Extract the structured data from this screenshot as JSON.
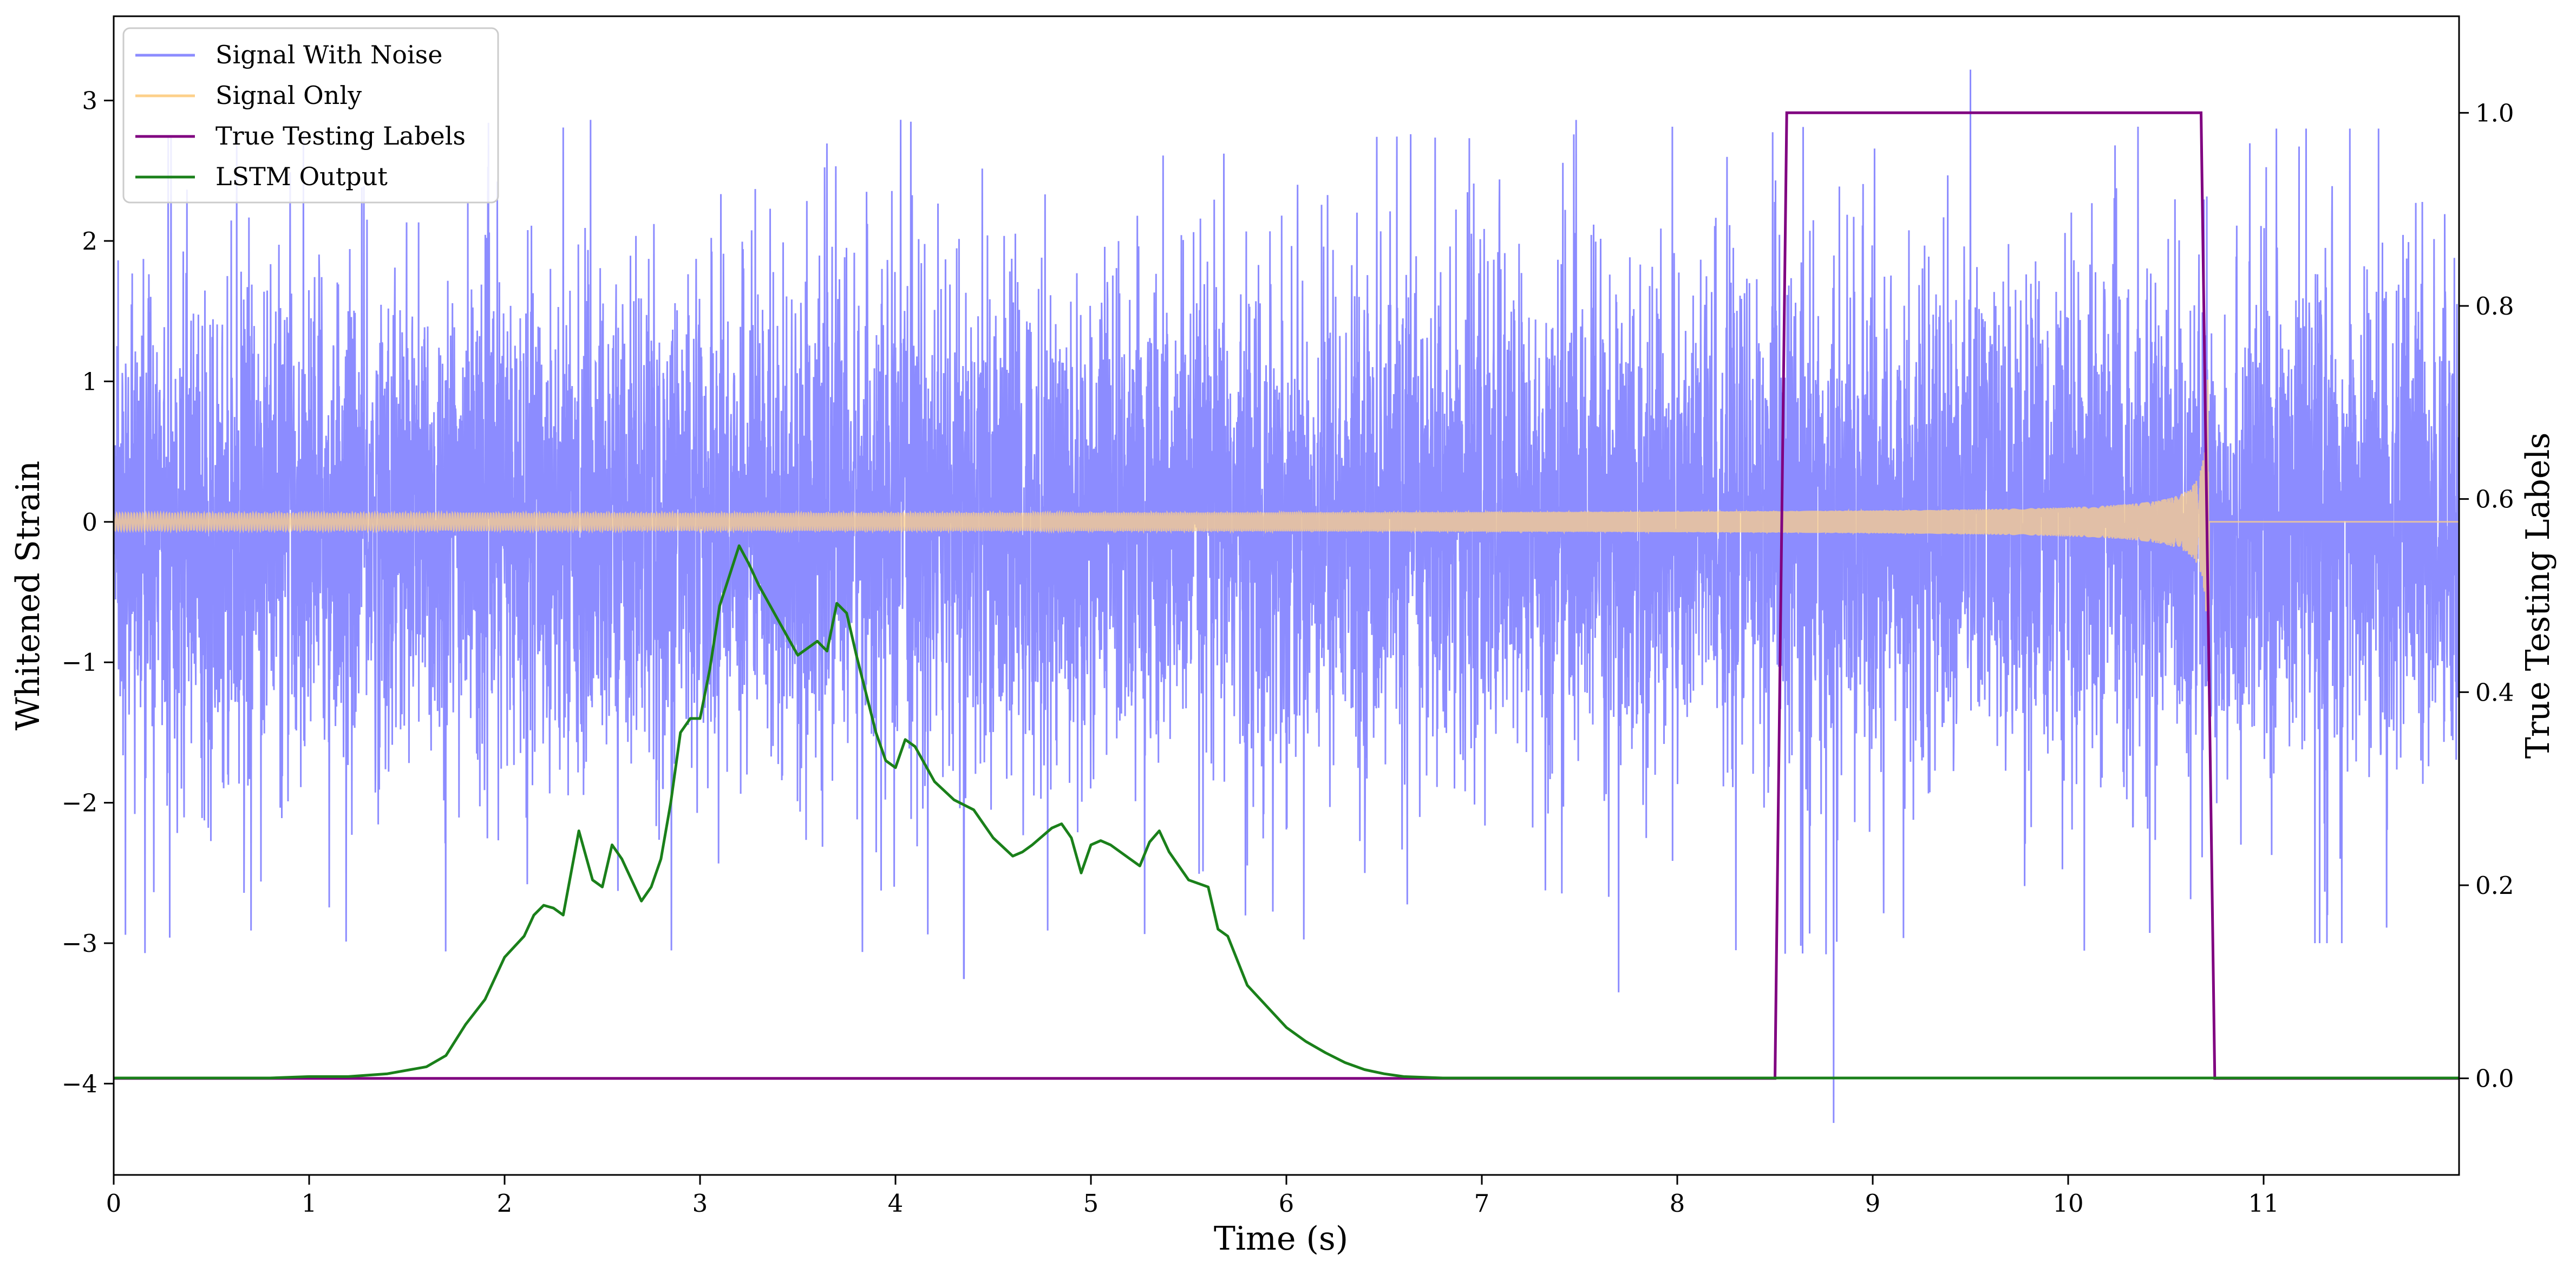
{
  "chart_data": {
    "type": "line",
    "title": "",
    "xlabel": "Time (s)",
    "ylabel": "Whitened Strain",
    "ylabel_right": "True Testing Labels",
    "xlim": [
      0,
      12
    ],
    "ylim": [
      -4.65,
      3.6
    ],
    "ylim_right": [
      -0.1,
      1.1
    ],
    "x_ticks": [
      0,
      1,
      2,
      3,
      4,
      5,
      6,
      7,
      8,
      9,
      10,
      11
    ],
    "y_ticks": [
      -4,
      -3,
      -2,
      -1,
      0,
      1,
      2,
      3
    ],
    "y_ticks_right": [
      0.0,
      0.2,
      0.4,
      0.6,
      0.8,
      1.0
    ],
    "x_tick_labels": [
      "0",
      "1",
      "2",
      "3",
      "4",
      "5",
      "6",
      "7",
      "8",
      "9",
      "10",
      "11"
    ],
    "y_tick_labels": [
      "−4",
      "−3",
      "−2",
      "−1",
      "0",
      "1",
      "2",
      "3"
    ],
    "y_tick_labels_right": [
      "0.0",
      "0.2",
      "0.4",
      "0.6",
      "0.8",
      "1.0"
    ],
    "grid": false,
    "legend_position": "top-left",
    "colors": {
      "noise": "#8080ff",
      "signal": "#fdd08a",
      "labels": "#800080",
      "lstm": "#1a801a"
    },
    "series": [
      {
        "name": "Signal With Noise",
        "axis": "left",
        "kind": "noise",
        "envelope": {
          "typical_amplitude": 1.8,
          "peak_max": 3.22,
          "peak_min": -4.28
        },
        "noted_extremes": [
          {
            "x": 9.5,
            "y": 3.22
          },
          {
            "x": 8.8,
            "y": -4.28
          },
          {
            "x": 0.16,
            "y": -3.07
          },
          {
            "x": 4.35,
            "y": -3.25
          },
          {
            "x": 7.7,
            "y": -3.35
          }
        ]
      },
      {
        "name": "Signal Only",
        "axis": "left",
        "kind": "chirp",
        "amplitude_start": 0.05,
        "amplitude_end": 0.78,
        "end_time": 10.72
      },
      {
        "name": "True Testing Labels",
        "axis": "right",
        "kind": "step",
        "x": [
          0,
          8.5,
          8.56,
          10.68,
          10.75,
          12
        ],
        "values": [
          0,
          0,
          1,
          1,
          0,
          0
        ]
      },
      {
        "name": "LSTM Output",
        "axis": "left",
        "kind": "line",
        "x": [
          0,
          0.8,
          1.0,
          1.2,
          1.4,
          1.6,
          1.7,
          1.8,
          1.9,
          2.0,
          2.1,
          2.15,
          2.2,
          2.25,
          2.3,
          2.38,
          2.45,
          2.5,
          2.55,
          2.6,
          2.7,
          2.75,
          2.8,
          2.85,
          2.9,
          2.95,
          3.0,
          3.05,
          3.1,
          3.2,
          3.25,
          3.3,
          3.4,
          3.5,
          3.6,
          3.65,
          3.7,
          3.75,
          3.8,
          3.9,
          3.95,
          4.0,
          4.05,
          4.1,
          4.2,
          4.3,
          4.4,
          4.5,
          4.6,
          4.65,
          4.7,
          4.8,
          4.85,
          4.9,
          4.95,
          5.0,
          5.05,
          5.1,
          5.2,
          5.25,
          5.3,
          5.35,
          5.4,
          5.5,
          5.6,
          5.65,
          5.7,
          5.8,
          5.9,
          6.0,
          6.1,
          6.2,
          6.3,
          6.4,
          6.5,
          6.6,
          6.8,
          7.0,
          7.5,
          8.0,
          12.0
        ],
        "values": [
          -3.96,
          -3.96,
          -3.95,
          -3.95,
          -3.93,
          -3.88,
          -3.8,
          -3.58,
          -3.4,
          -3.1,
          -2.95,
          -2.8,
          -2.73,
          -2.75,
          -2.8,
          -2.2,
          -2.55,
          -2.6,
          -2.3,
          -2.4,
          -2.7,
          -2.6,
          -2.4,
          -2.0,
          -1.5,
          -1.4,
          -1.4,
          -1.05,
          -0.6,
          -0.17,
          -0.3,
          -0.45,
          -0.7,
          -0.95,
          -0.85,
          -0.92,
          -0.58,
          -0.65,
          -0.95,
          -1.5,
          -1.7,
          -1.75,
          -1.55,
          -1.6,
          -1.85,
          -1.98,
          -2.05,
          -2.25,
          -2.38,
          -2.35,
          -2.3,
          -2.18,
          -2.15,
          -2.25,
          -2.5,
          -2.3,
          -2.27,
          -2.3,
          -2.4,
          -2.45,
          -2.28,
          -2.2,
          -2.35,
          -2.55,
          -2.6,
          -2.9,
          -2.95,
          -3.3,
          -3.45,
          -3.6,
          -3.7,
          -3.78,
          -3.85,
          -3.9,
          -3.93,
          -3.95,
          -3.96,
          -3.96,
          -3.96,
          -3.96,
          -3.96
        ]
      }
    ]
  }
}
